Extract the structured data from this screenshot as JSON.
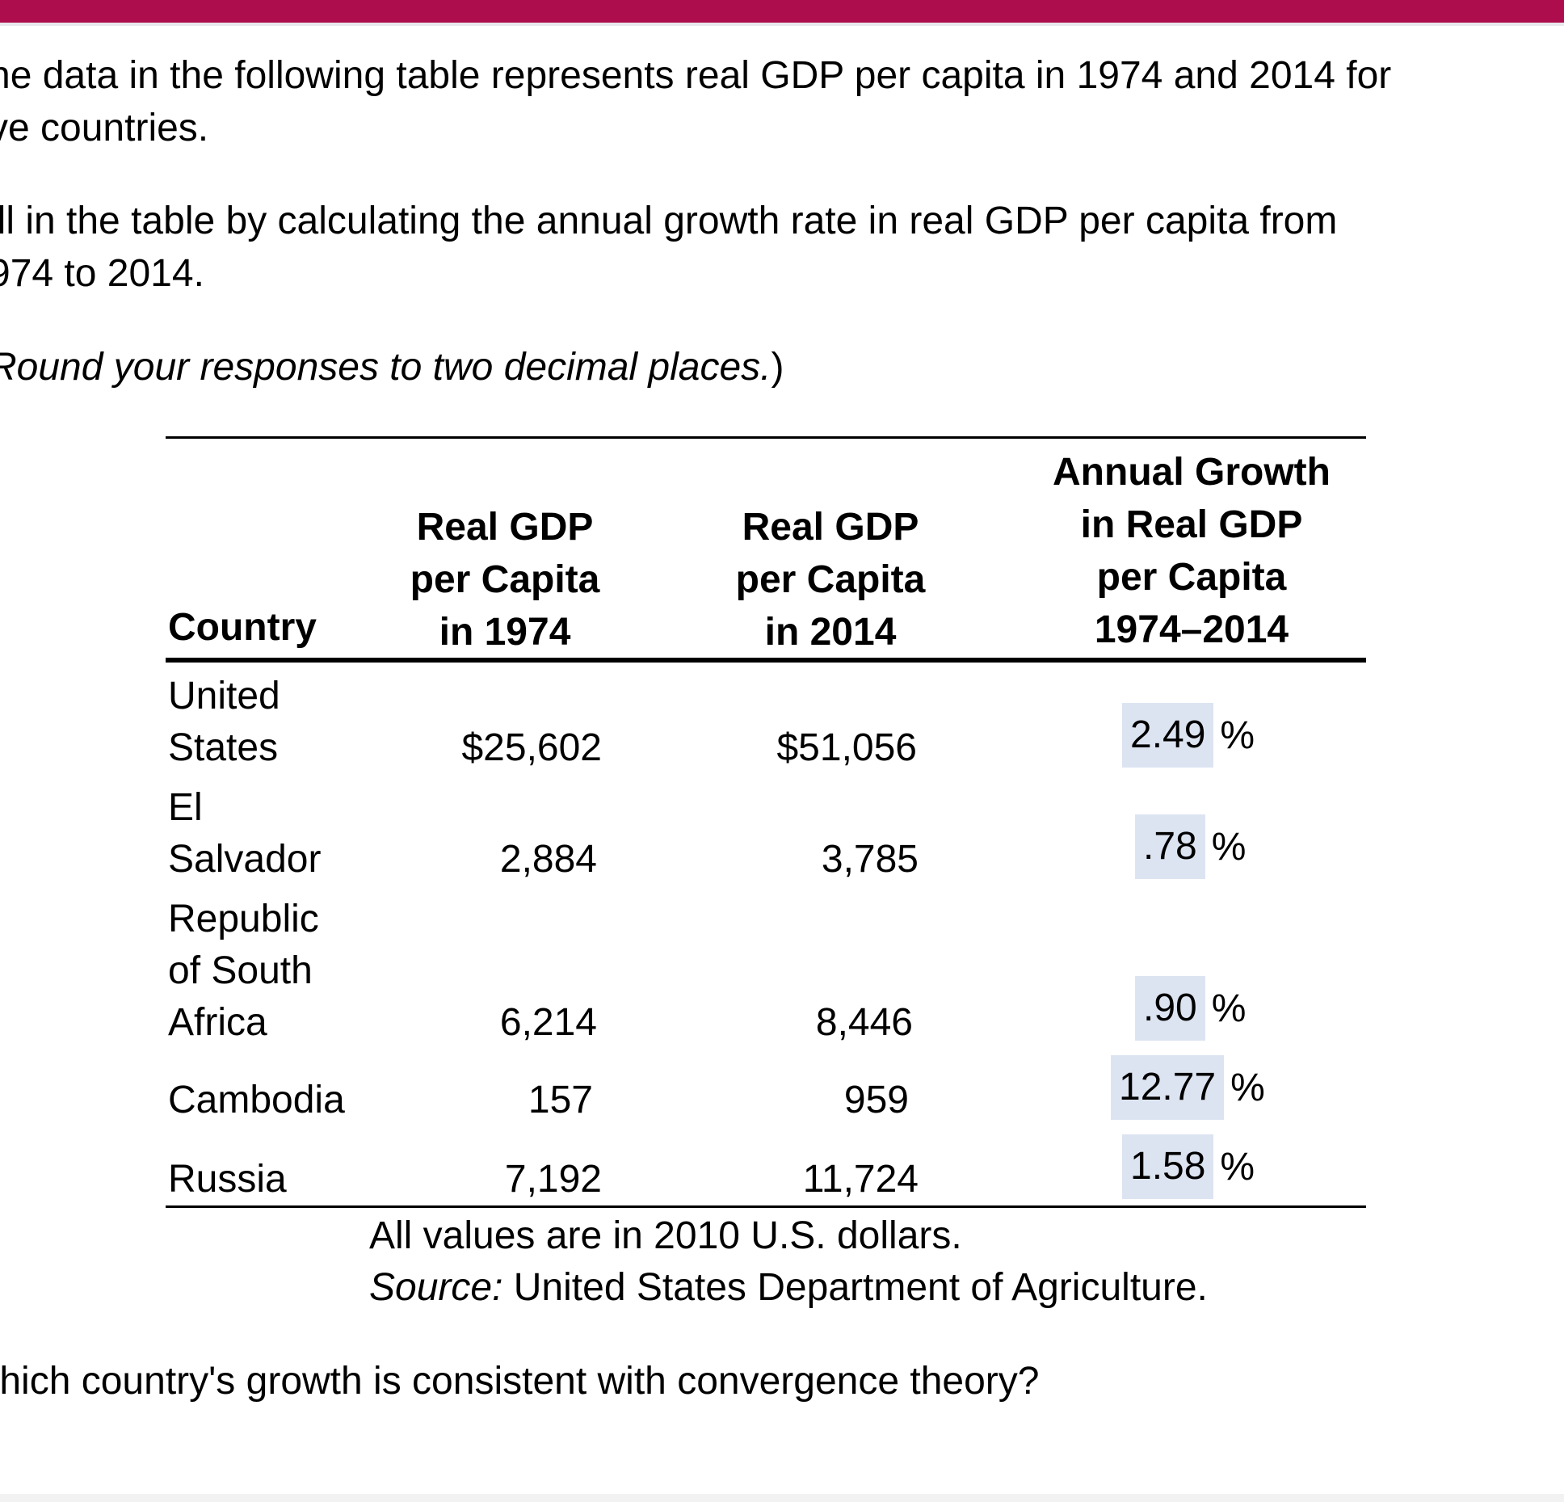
{
  "intro": {
    "line1": "he data in the following table represents real GDP per capita in 1974 and 2014 for",
    "line2": "ve countries."
  },
  "instruction": {
    "line1": "ill in the table by calculating the annual growth rate in real GDP per capita from",
    "line2": "974 to 2014."
  },
  "rounding_note": {
    "italic": "Round your responses to two decimal places.",
    "suffix": ")"
  },
  "table": {
    "headers": {
      "country": "Country",
      "gdp1974": [
        "Real GDP",
        "per Capita",
        "in 1974"
      ],
      "gdp2014": [
        "Real GDP",
        "per Capita",
        "in 2014"
      ],
      "growth": [
        "Annual Growth",
        "in Real GDP",
        "per Capita",
        "1974–2014"
      ]
    },
    "rows": [
      {
        "country": [
          "United",
          "States"
        ],
        "gdp1974": "$25,602",
        "gdp2014": "$51,056",
        "growth": "2.49",
        "unit": "%"
      },
      {
        "country": [
          "El",
          "Salvador"
        ],
        "gdp1974": "2,884",
        "gdp2014": "3,785",
        "growth": ".78",
        "unit": "%"
      },
      {
        "country": [
          "Republic",
          "of South",
          "Africa"
        ],
        "gdp1974": "6,214",
        "gdp2014": "8,446",
        "growth": ".90",
        "unit": "%"
      },
      {
        "country": [
          "Cambodia"
        ],
        "gdp1974": "157",
        "gdp2014": "959",
        "growth": "12.77",
        "unit": "%"
      },
      {
        "country": [
          "Russia"
        ],
        "gdp1974": "7,192",
        "gdp2014": "11,724",
        "growth": "1.58",
        "unit": "%"
      }
    ],
    "note_values": "All values are in 2010 U.S. dollars.",
    "note_source_label": "Source:",
    "note_source_text": " United States Department of Agriculture."
  },
  "question": "hich country's growth is consistent with convergence theory?",
  "question_prefix": "/",
  "colors": {
    "topbar": "#ad0d4c",
    "answer_box": "#dde4f1"
  }
}
